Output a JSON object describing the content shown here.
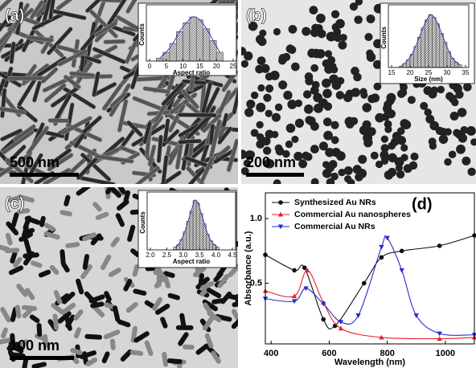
{
  "panels": [
    {
      "label": "(a)",
      "scale_bar": "500 nm"
    },
    {
      "label": "(b)",
      "scale_bar": "200 nm"
    },
    {
      "label": "(c)",
      "scale_bar": "100 nm"
    },
    {
      "label": "(d)"
    }
  ],
  "chart_data": [
    {
      "type": "histogram",
      "xlabel": "Aspect ratio",
      "ylabel": "Counts",
      "bins": [
        2,
        4,
        6,
        8,
        10,
        12,
        14,
        16,
        18,
        20,
        22
      ],
      "values": [
        1,
        3,
        6,
        10,
        13,
        15,
        14,
        11,
        7,
        3
      ],
      "color": "#bdbdbd",
      "fit_color": "#3a3ab0",
      "xlim": [
        0,
        25
      ],
      "xticks": [
        0,
        5,
        10,
        15,
        20,
        25
      ],
      "ylim": [
        0,
        18
      ]
    },
    {
      "type": "histogram",
      "xlabel": "Size (nm)",
      "ylabel": "Counts",
      "bins": [
        17,
        18,
        19,
        20,
        21,
        22,
        23,
        24,
        25,
        26,
        27,
        28,
        29,
        30,
        31,
        32,
        33,
        34
      ],
      "values": [
        1,
        3,
        6,
        10,
        16,
        23,
        30,
        36,
        40,
        38,
        33,
        26,
        19,
        12,
        7,
        4,
        2
      ],
      "color": "#bdbdbd",
      "fit_color": "#3a3ab0",
      "xlim": [
        15,
        35
      ],
      "xticks": [
        15,
        20,
        25,
        30,
        35
      ],
      "ylim": [
        0,
        45
      ]
    },
    {
      "type": "histogram",
      "xlabel": "Aspect ratio",
      "ylabel": "Counts",
      "bins": [
        2.7,
        2.8,
        2.9,
        3.0,
        3.1,
        3.2,
        3.3,
        3.4,
        3.5,
        3.6,
        3.7,
        3.8,
        3.9,
        4.0,
        4.1
      ],
      "values": [
        2,
        4,
        8,
        14,
        22,
        30,
        38,
        36,
        28,
        20,
        12,
        7,
        4,
        2
      ],
      "color": "#bdbdbd",
      "fit_color": "#3a3ab0",
      "xlim": [
        2.0,
        4.5
      ],
      "xticks": [
        {
          "value": 2,
          "label": "2.0"
        },
        2.5,
        {
          "value": 3,
          "label": "3.0"
        },
        3.5,
        {
          "value": 4,
          "label": "4.0"
        },
        4.5
      ],
      "ylim": [
        0,
        42
      ]
    },
    {
      "type": "line",
      "xlabel": "Wavelength (nm)",
      "ylabel": "Absorbance (a.u.)",
      "xlim": [
        380,
        1100
      ],
      "xticks": [
        400,
        600,
        800,
        1000
      ],
      "ylim": [
        0.03,
        1.2
      ],
      "yticks": [
        0.5,
        {
          "value": 1,
          "label": "1.0"
        }
      ],
      "legend": "upper left",
      "series": [
        {
          "name": "Synthesized Au NRs",
          "color": "#111111",
          "marker": "circle",
          "x": [
            380,
            480,
            515,
            580,
            620,
            720,
            780,
            850,
            980,
            1100
          ],
          "values": [
            0.72,
            0.6,
            0.62,
            0.22,
            0.17,
            0.5,
            0.7,
            0.75,
            0.79,
            0.87
          ]
        },
        {
          "name": "Commercial Au nanospheres",
          "color": "#e8202a",
          "marker": "triangle-up",
          "x": [
            380,
            480,
            525,
            580,
            640,
            780,
            980,
            1100
          ],
          "values": [
            0.44,
            0.4,
            0.6,
            0.35,
            0.15,
            0.08,
            0.07,
            0.08
          ]
        },
        {
          "name": "Commercial Au NRs",
          "color": "#2a2ad0",
          "marker": "triangle-down",
          "x": [
            380,
            480,
            520,
            580,
            640,
            700,
            780,
            800,
            850,
            900,
            980,
            1100
          ],
          "values": [
            0.38,
            0.36,
            0.46,
            0.34,
            0.2,
            0.25,
            0.78,
            0.85,
            0.6,
            0.25,
            0.11,
            0.1
          ]
        }
      ]
    }
  ]
}
